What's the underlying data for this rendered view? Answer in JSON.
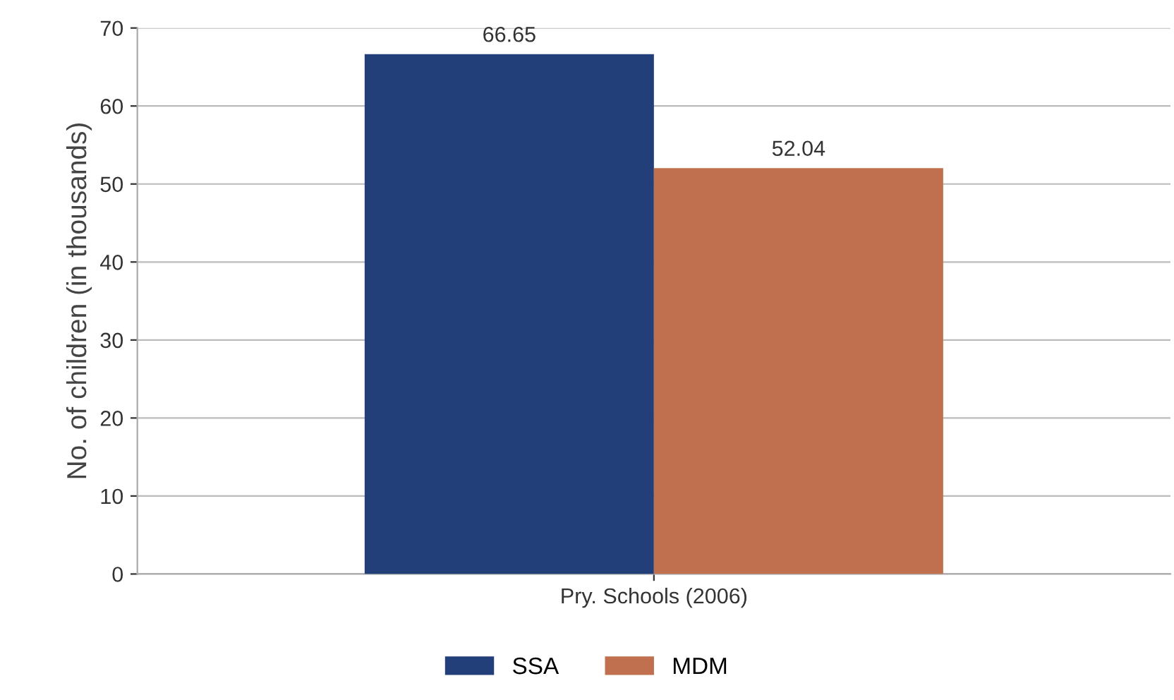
{
  "chart_data": {
    "type": "bar",
    "ylabel": "No. of children (in thousands)",
    "categories": [
      "Pry. Schools (2006)"
    ],
    "series": [
      {
        "name": "SSA",
        "color": "#233f7a",
        "values": [
          66.65
        ]
      },
      {
        "name": "MDM",
        "color": "#c0704f",
        "values": [
          52.04
        ]
      }
    ],
    "ylim": [
      0,
      70
    ],
    "yticks": [
      0,
      10,
      20,
      30,
      40,
      50,
      60,
      70
    ],
    "grid": "y",
    "legend": "bottom",
    "data_labels": true
  }
}
